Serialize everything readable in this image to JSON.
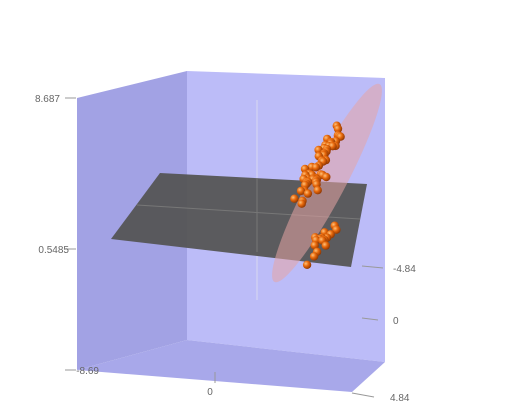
{
  "colors": {
    "back_wall": "#bcbcf8",
    "left_wall": "#a2a2e4",
    "floor_wall": "#a8a8ea",
    "plane": "#555555",
    "ellipsoid": "#e6a4a4",
    "point": "#e8690c",
    "point_shade": "#8a3300",
    "tick_text": "#666666"
  },
  "chart_data": {
    "type": "scatter3d",
    "title": "",
    "axes": {
      "z": {
        "range": [
          -8.69,
          8.687
        ],
        "tick_labels": [
          "8.687",
          "0.5485",
          "-8.69"
        ]
      },
      "x": {
        "range": [
          -4.84,
          4.84
        ],
        "tick_labels": [
          "0"
        ]
      },
      "y": {
        "range": [
          -4.84,
          4.84
        ],
        "tick_labels": [
          "-4.84",
          "0",
          "4.84"
        ]
      }
    },
    "surfaces": [
      "horizontal plane at z = 0",
      "confidence ellipsoid"
    ],
    "series": [
      {
        "marker": "sphere",
        "clusters": [
          {
            "center": [
              3.2,
              1.8,
              3.4
            ],
            "count": 55
          },
          {
            "center": [
              1.6,
              3.3,
              -1.6
            ],
            "count": 16
          }
        ]
      }
    ]
  }
}
